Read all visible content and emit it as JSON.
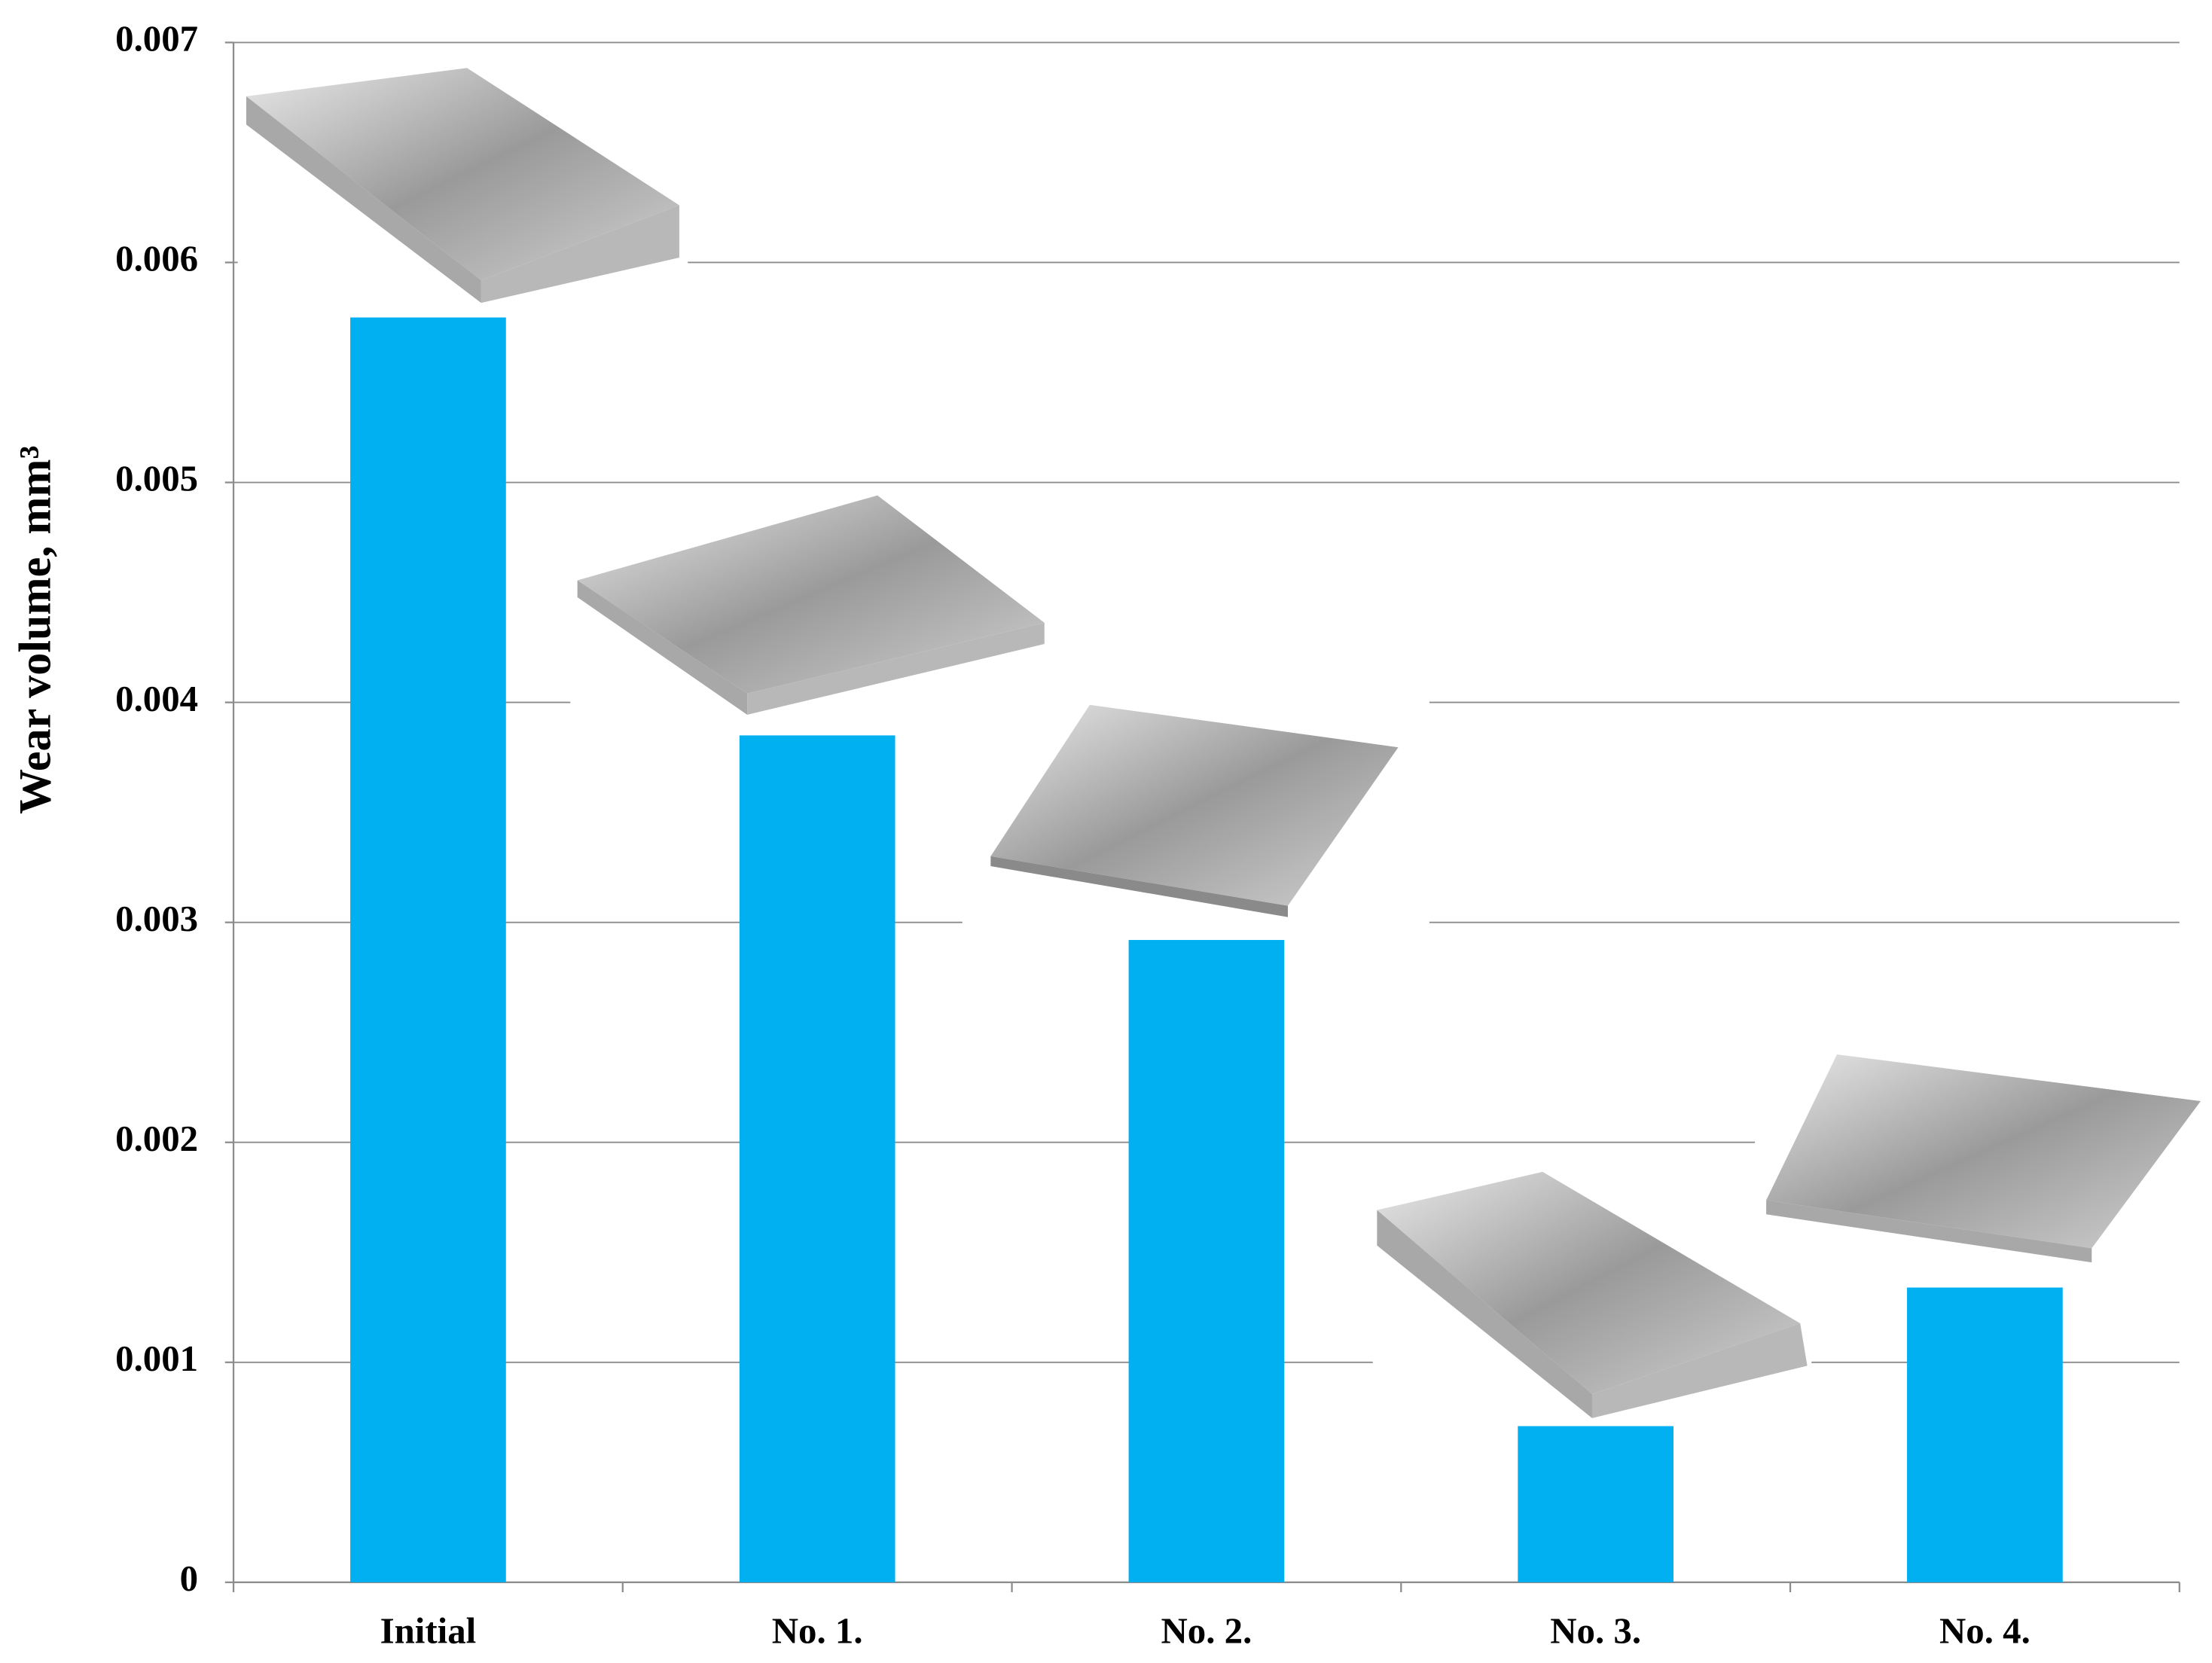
{
  "chart_data": {
    "type": "bar",
    "y_label": "Wear volume, mm³",
    "categories": [
      "Initial",
      "No. 1.",
      "No. 2.",
      "No. 3.",
      "No. 4."
    ],
    "values": [
      0.00575,
      0.00385,
      0.00292,
      0.00071,
      0.00134
    ],
    "color": "#00b0f0",
    "ylim": [
      0,
      0.007
    ],
    "yticks": [
      0,
      0.001,
      0.002,
      0.003,
      0.004,
      0.005,
      0.006,
      0.007
    ],
    "grid": true
  }
}
